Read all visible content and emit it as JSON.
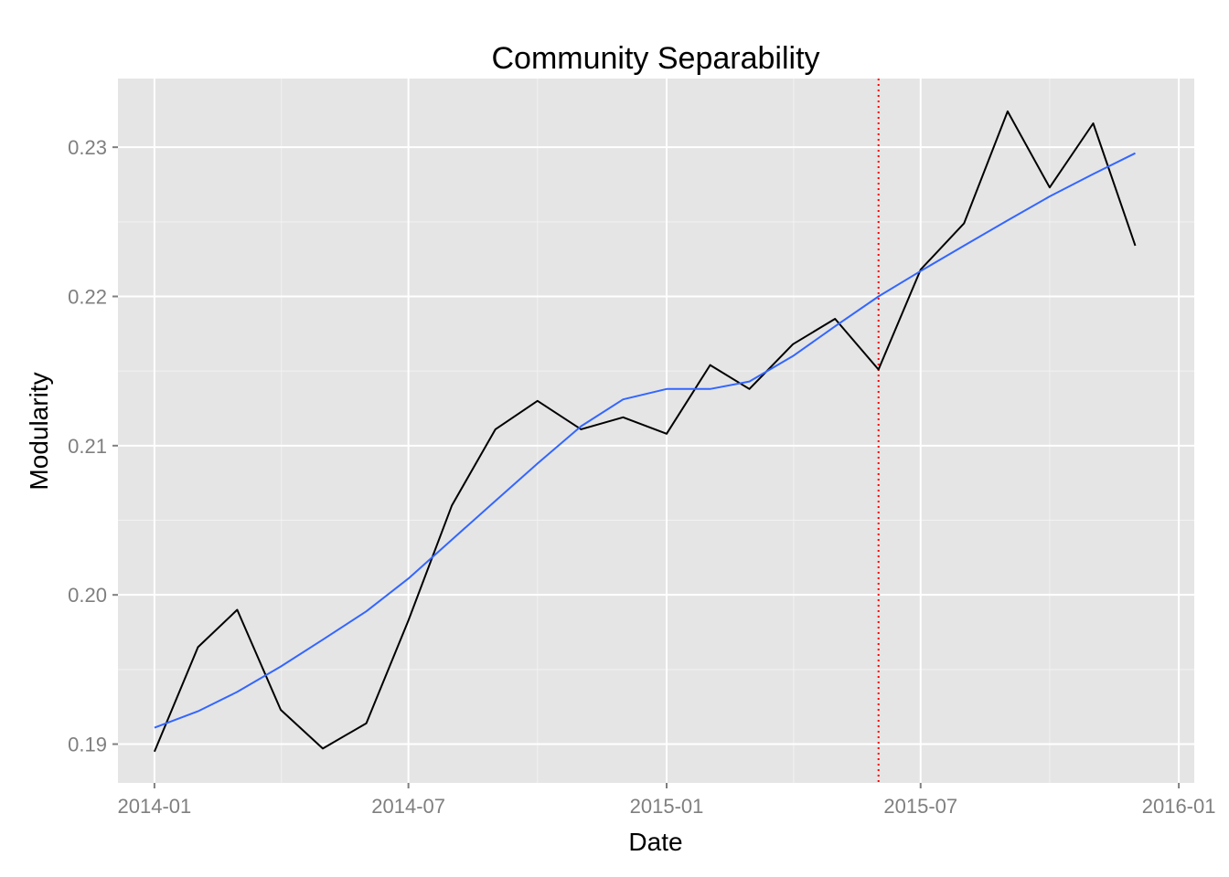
{
  "chart_data": {
    "type": "line",
    "title": "Community Separability",
    "xlabel": "Date",
    "ylabel": "Modularity",
    "x_axis_type": "date",
    "xlim": [
      "2013-12-06",
      "2016-01-12"
    ],
    "ylim": [
      0.1874,
      0.2346
    ],
    "x_ticks": [
      "2014-01",
      "2014-07",
      "2015-01",
      "2015-07",
      "2016-01"
    ],
    "y_ticks": [
      "0.19",
      "0.20",
      "0.21",
      "0.22",
      "0.23"
    ],
    "grid": true,
    "panel_background": "#e5e5e5",
    "grid_color": "#ffffff",
    "series": [
      {
        "color": "#000000",
        "points": [
          {
            "x": "2014-01-01",
            "y": 0.1895
          },
          {
            "x": "2014-02-01",
            "y": 0.1965
          },
          {
            "x": "2014-03-01",
            "y": 0.199
          },
          {
            "x": "2014-04-01",
            "y": 0.1923
          },
          {
            "x": "2014-05-01",
            "y": 0.1897
          },
          {
            "x": "2014-06-01",
            "y": 0.1914
          },
          {
            "x": "2014-07-01",
            "y": 0.1983
          },
          {
            "x": "2014-08-01",
            "y": 0.206
          },
          {
            "x": "2014-09-01",
            "y": 0.2111
          },
          {
            "x": "2014-10-01",
            "y": 0.213
          },
          {
            "x": "2014-11-01",
            "y": 0.2111
          },
          {
            "x": "2014-12-01",
            "y": 0.2119
          },
          {
            "x": "2015-01-01",
            "y": 0.2108
          },
          {
            "x": "2015-02-01",
            "y": 0.2154
          },
          {
            "x": "2015-03-01",
            "y": 0.2138
          },
          {
            "x": "2015-04-01",
            "y": 0.2168
          },
          {
            "x": "2015-05-01",
            "y": 0.2185
          },
          {
            "x": "2015-06-01",
            "y": 0.2151
          },
          {
            "x": "2015-07-01",
            "y": 0.2218
          },
          {
            "x": "2015-08-01",
            "y": 0.2249
          },
          {
            "x": "2015-09-01",
            "y": 0.2324
          },
          {
            "x": "2015-10-01",
            "y": 0.2273
          },
          {
            "x": "2015-11-01",
            "y": 0.2316
          },
          {
            "x": "2015-12-01",
            "y": 0.2234
          }
        ]
      },
      {
        "color": "#3366ff",
        "style": "smooth",
        "points": [
          {
            "x": "2014-01-01",
            "y": 0.1911
          },
          {
            "x": "2014-02-01",
            "y": 0.1922
          },
          {
            "x": "2014-03-01",
            "y": 0.1935
          },
          {
            "x": "2014-04-01",
            "y": 0.1952
          },
          {
            "x": "2014-05-01",
            "y": 0.197
          },
          {
            "x": "2014-06-01",
            "y": 0.1989
          },
          {
            "x": "2014-07-01",
            "y": 0.2011
          },
          {
            "x": "2014-08-01",
            "y": 0.2037
          },
          {
            "x": "2014-09-01",
            "y": 0.2063
          },
          {
            "x": "2014-10-01",
            "y": 0.2088
          },
          {
            "x": "2014-11-01",
            "y": 0.2113
          },
          {
            "x": "2014-12-01",
            "y": 0.2131
          },
          {
            "x": "2015-01-01",
            "y": 0.2138
          },
          {
            "x": "2015-02-01",
            "y": 0.2138
          },
          {
            "x": "2015-03-01",
            "y": 0.2143
          },
          {
            "x": "2015-04-01",
            "y": 0.216
          },
          {
            "x": "2015-05-01",
            "y": 0.218
          },
          {
            "x": "2015-06-01",
            "y": 0.22
          },
          {
            "x": "2015-07-01",
            "y": 0.2217
          },
          {
            "x": "2015-08-01",
            "y": 0.2234
          },
          {
            "x": "2015-09-01",
            "y": 0.2251
          },
          {
            "x": "2015-10-01",
            "y": 0.2267
          },
          {
            "x": "2015-11-01",
            "y": 0.2282
          },
          {
            "x": "2015-12-01",
            "y": 0.2296
          }
        ]
      }
    ],
    "vlines": [
      {
        "x": "2015-06-01",
        "color": "#ff0000",
        "style": "dotted"
      }
    ]
  }
}
